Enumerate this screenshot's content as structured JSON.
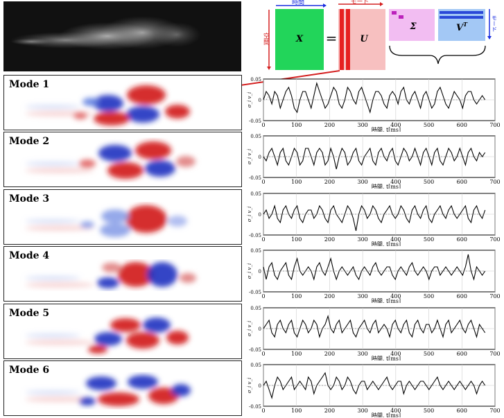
{
  "diagram": {
    "x_label": "X",
    "u_label": "U",
    "sigma_label": "Σ",
    "vt_label": "V",
    "vt_sup": "T",
    "equals": "=",
    "time_axis": "時間",
    "space_axis": "空間",
    "mode_axis": "モード",
    "mode_axis_v": "モード",
    "colors": {
      "x": "#22d55a",
      "u": "#f7c0c0",
      "u_cols": "#e62020",
      "sigma": "#f2bdf2",
      "sigma_blocks": "#bb22bb",
      "vt": "#a3c8f5",
      "vt_bars": "#2a48d8",
      "arrow_red": "#d42020",
      "arrow_blue": "#1a2ee0"
    }
  },
  "modes": [
    {
      "label": "Mode 1"
    },
    {
      "label": "Mode 2"
    },
    {
      "label": "Mode 3"
    },
    {
      "label": "Mode 4"
    },
    {
      "label": "Mode 5"
    },
    {
      "label": "Mode 6"
    }
  ],
  "chart_data": {
    "type": "line",
    "xlabel": "時間, t[ms]",
    "ylabel": "σ_i v_i",
    "xlim": [
      0,
      700
    ],
    "ylim": [
      -0.05,
      0.05
    ],
    "xticks": [
      "0",
      "100",
      "200",
      "300",
      "400",
      "500",
      "600",
      "700"
    ],
    "yticks": [
      "0.05",
      "0",
      "-0.05"
    ],
    "grid": true,
    "panels": [
      {
        "name": "Mode 1",
        "y": [
          0.0,
          0.02,
          0.01,
          -0.01,
          0.02,
          0.01,
          -0.02,
          0.0,
          0.02,
          0.03,
          0.01,
          -0.02,
          -0.03,
          0.0,
          0.02,
          0.02,
          0.0,
          -0.02,
          0.01,
          0.04,
          0.02,
          0.0,
          -0.02,
          -0.01,
          0.01,
          0.03,
          0.02,
          -0.01,
          -0.02,
          0.0,
          0.03,
          0.02,
          0.0,
          -0.01,
          0.02,
          0.03,
          0.01,
          -0.01,
          -0.03,
          0.0,
          0.02,
          0.02,
          0.01,
          -0.01,
          -0.02,
          0.01,
          0.02,
          0.01,
          -0.01,
          0.02,
          0.03,
          0.0,
          -0.01,
          0.01,
          0.02,
          0.0,
          -0.02,
          0.01,
          0.02,
          0.0,
          -0.02,
          -0.01,
          0.02,
          0.03,
          0.01,
          -0.01,
          -0.02,
          0.0,
          0.02,
          0.01,
          0.0,
          -0.02,
          0.01,
          0.02,
          0.02,
          0.0,
          -0.01,
          0.0,
          0.01,
          0.0
        ],
        "y2": [
          0.0,
          0.0,
          0.01,
          0.0,
          0.0,
          0.0,
          0.0,
          0.0,
          0.0,
          0.0,
          0.0,
          0.0,
          0.0,
          0.0,
          0.0,
          0.0,
          0.0,
          0.0,
          0.0,
          0.0,
          0.0,
          0.0,
          0.0,
          0.0,
          0.0,
          0.0,
          0.0,
          0.0,
          0.0,
          0.0,
          0.0,
          0.0,
          0.0,
          0.0,
          0.0,
          0.0,
          0.0,
          0.0,
          0.0,
          0.0,
          0.0,
          0.0,
          0.0,
          0.0,
          0.0,
          0.0,
          0.0,
          0.0,
          0.0,
          0.0,
          0.0,
          0.0,
          0.0,
          0.0,
          0.0,
          0.0,
          0.0,
          0.0,
          0.0,
          0.0,
          0.0,
          0.0,
          0.0,
          0.0,
          0.0,
          0.0,
          0.0,
          0.0,
          0.0,
          0.0,
          0.0,
          0.0,
          0.0,
          0.0,
          0.0,
          0.0,
          0.0,
          0.0,
          0.0,
          0.0
        ]
      },
      {
        "name": "Mode 2",
        "y": [
          0.0,
          -0.01,
          0.01,
          0.02,
          0.0,
          -0.02,
          0.01,
          0.02,
          -0.01,
          -0.02,
          0.0,
          0.02,
          0.01,
          -0.02,
          -0.01,
          0.02,
          0.02,
          0.0,
          -0.02,
          0.01,
          0.02,
          0.01,
          -0.02,
          -0.01,
          0.02,
          0.0,
          -0.03,
          0.0,
          0.02,
          0.01,
          -0.02,
          -0.01,
          0.01,
          0.02,
          -0.01,
          -0.02,
          0.0,
          0.01,
          0.02,
          -0.01,
          -0.02,
          0.01,
          0.02,
          0.0,
          -0.01,
          0.01,
          0.02,
          -0.01,
          -0.02,
          0.0,
          0.02,
          0.01,
          -0.01,
          0.0,
          0.02,
          0.0,
          -0.02,
          0.01,
          0.02,
          0.0,
          -0.02,
          0.01,
          0.02,
          -0.01,
          -0.02,
          0.0,
          0.02,
          0.01,
          -0.01,
          0.0,
          0.02,
          0.0,
          -0.02,
          0.01,
          0.02,
          0.0,
          -0.01,
          0.01,
          0.0,
          0.01
        ],
        "y2": [
          0.0,
          0.0,
          0.0,
          0.0,
          0.0,
          0.0,
          0.0,
          0.0,
          0.0,
          0.0,
          0.0,
          0.0,
          0.0,
          0.0,
          0.0,
          0.0,
          0.0,
          0.0,
          0.0,
          0.0,
          0.0,
          0.0,
          0.0,
          0.0,
          0.0,
          0.0,
          0.0,
          0.0,
          0.0,
          0.0,
          0.0,
          0.0,
          0.0,
          0.0,
          0.0,
          0.0,
          0.0,
          0.0,
          0.0,
          0.0,
          0.0,
          0.0,
          0.0,
          0.0,
          0.0,
          0.0,
          0.0,
          0.0,
          0.0,
          0.0,
          0.0,
          0.0,
          0.0,
          0.0,
          0.0,
          0.0,
          0.0,
          0.0,
          0.0,
          0.0,
          0.0,
          0.0,
          0.0,
          0.0,
          0.0,
          0.0,
          0.0,
          0.0,
          0.0,
          0.0,
          0.0,
          0.0,
          0.0,
          0.0,
          0.0,
          0.0,
          0.0,
          0.0,
          0.0,
          0.0
        ]
      },
      {
        "name": "Mode 3",
        "y": [
          0.0,
          0.01,
          -0.01,
          0.0,
          0.02,
          -0.01,
          -0.02,
          0.01,
          0.02,
          0.0,
          -0.01,
          0.01,
          0.02,
          -0.01,
          -0.02,
          0.0,
          0.01,
          0.01,
          -0.01,
          0.0,
          0.02,
          0.01,
          -0.01,
          -0.02,
          0.01,
          0.02,
          0.0,
          -0.01,
          -0.02,
          0.0,
          0.02,
          0.01,
          -0.01,
          -0.04,
          0.0,
          0.02,
          0.01,
          -0.01,
          0.0,
          0.02,
          0.01,
          -0.01,
          -0.02,
          0.0,
          0.01,
          0.02,
          0.0,
          -0.01,
          0.0,
          0.02,
          0.01,
          -0.01,
          -0.02,
          0.01,
          0.02,
          0.0,
          -0.01,
          0.01,
          0.02,
          -0.01,
          -0.02,
          0.0,
          0.01,
          0.02,
          0.0,
          -0.01,
          0.01,
          0.02,
          0.0,
          -0.01,
          0.0,
          0.01,
          0.02,
          -0.01,
          -0.02,
          0.01,
          0.02,
          0.0,
          -0.01,
          0.01
        ],
        "y2": [
          0.0,
          0.0,
          0.0,
          0.0,
          0.0,
          0.0,
          0.0,
          0.0,
          0.0,
          0.0,
          0.0,
          0.0,
          0.0,
          0.0,
          0.0,
          0.0,
          0.0,
          0.0,
          0.0,
          0.0,
          0.0,
          0.0,
          0.0,
          0.0,
          0.0,
          0.0,
          0.0,
          0.0,
          0.0,
          0.0,
          0.0,
          0.0,
          0.0,
          0.0,
          0.0,
          0.0,
          0.0,
          0.0,
          0.0,
          0.0,
          0.0,
          0.0,
          0.0,
          0.0,
          0.0,
          0.0,
          0.0,
          0.0,
          0.0,
          0.0,
          0.0,
          0.0,
          0.0,
          0.0,
          0.0,
          0.0,
          0.0,
          0.0,
          0.0,
          0.0,
          0.0,
          0.0,
          0.0,
          0.0,
          0.0,
          0.0,
          0.0,
          0.0,
          0.0,
          0.0,
          0.0,
          0.0,
          0.0,
          0.0,
          0.0,
          0.0,
          0.0,
          0.0,
          0.0,
          0.0
        ]
      },
      {
        "name": "Mode 4",
        "y": [
          0.01,
          -0.02,
          0.01,
          0.02,
          -0.01,
          -0.02,
          0.0,
          0.01,
          0.02,
          -0.01,
          -0.02,
          0.01,
          0.03,
          0.0,
          -0.01,
          0.0,
          0.01,
          0.0,
          -0.02,
          0.01,
          0.02,
          0.0,
          -0.01,
          0.01,
          0.03,
          0.0,
          -0.02,
          0.0,
          0.01,
          0.0,
          -0.01,
          0.0,
          0.01,
          -0.01,
          -0.02,
          0.0,
          0.01,
          0.0,
          -0.01,
          0.01,
          0.02,
          0.0,
          -0.01,
          0.0,
          0.01,
          0.01,
          -0.01,
          -0.02,
          0.0,
          0.01,
          0.0,
          -0.01,
          0.01,
          0.02,
          0.0,
          -0.01,
          0.0,
          0.01,
          0.0,
          -0.02,
          0.0,
          0.01,
          0.01,
          -0.01,
          0.0,
          0.01,
          0.0,
          -0.01,
          0.0,
          0.01,
          0.0,
          -0.01,
          0.01,
          0.04,
          0.0,
          -0.02,
          0.01,
          0.0,
          -0.01,
          0.0
        ],
        "y2": [
          0.0,
          0.0,
          0.0,
          0.0,
          0.0,
          0.0,
          0.0,
          0.0,
          0.0,
          0.0,
          0.0,
          0.0,
          0.0,
          0.0,
          0.0,
          0.0,
          0.0,
          0.0,
          0.0,
          0.0,
          0.0,
          0.0,
          0.0,
          0.0,
          0.0,
          0.0,
          0.0,
          0.0,
          0.0,
          0.0,
          0.0,
          0.0,
          0.0,
          0.0,
          0.0,
          0.0,
          0.0,
          0.0,
          0.0,
          0.0,
          0.0,
          0.0,
          0.0,
          0.0,
          0.0,
          0.0,
          0.0,
          0.0,
          0.0,
          0.0,
          0.0,
          0.0,
          0.0,
          0.0,
          0.0,
          0.0,
          0.0,
          0.0,
          0.0,
          0.0,
          0.0,
          0.0,
          0.0,
          0.0,
          0.0,
          0.0,
          0.0,
          0.0,
          0.0,
          0.0,
          0.0,
          0.0,
          0.0,
          0.0,
          0.0,
          0.0,
          0.0,
          0.0,
          0.0,
          0.0
        ]
      },
      {
        "name": "Mode 5",
        "y": [
          0.0,
          0.01,
          0.02,
          -0.01,
          -0.02,
          0.01,
          0.02,
          0.0,
          -0.01,
          0.01,
          0.02,
          -0.01,
          -0.02,
          0.0,
          0.02,
          0.01,
          -0.01,
          0.0,
          0.02,
          0.01,
          -0.02,
          0.0,
          0.01,
          0.03,
          0.0,
          -0.01,
          0.01,
          0.02,
          -0.01,
          0.0,
          0.01,
          0.02,
          -0.01,
          -0.02,
          0.0,
          0.01,
          0.02,
          0.0,
          -0.01,
          0.01,
          0.02,
          -0.01,
          0.0,
          0.01,
          0.0,
          -0.02,
          0.01,
          0.02,
          0.0,
          -0.01,
          0.01,
          0.02,
          -0.01,
          -0.02,
          0.01,
          0.02,
          0.0,
          -0.01,
          0.01,
          0.01,
          -0.01,
          0.0,
          0.02,
          0.0,
          -0.02,
          0.01,
          0.02,
          -0.01,
          0.0,
          0.01,
          0.02,
          0.0,
          -0.01,
          0.01,
          0.02,
          0.0,
          -0.02,
          0.01,
          0.0,
          -0.01
        ],
        "y2": [
          0.0,
          0.0,
          0.0,
          0.0,
          0.0,
          0.0,
          0.0,
          0.0,
          0.0,
          0.0,
          0.0,
          0.0,
          0.0,
          0.0,
          0.0,
          0.0,
          0.0,
          0.0,
          0.0,
          0.0,
          0.0,
          0.0,
          0.0,
          0.0,
          0.0,
          0.0,
          0.0,
          0.0,
          0.0,
          0.0,
          0.0,
          0.0,
          0.0,
          0.0,
          0.0,
          0.0,
          0.0,
          0.0,
          0.0,
          0.0,
          0.0,
          0.0,
          0.0,
          0.0,
          0.0,
          0.0,
          0.0,
          0.0,
          0.0,
          0.0,
          0.0,
          0.0,
          0.0,
          0.0,
          0.0,
          0.0,
          0.0,
          0.0,
          0.0,
          0.0,
          0.0,
          0.0,
          0.0,
          0.0,
          0.0,
          0.0,
          0.0,
          0.0,
          0.0,
          0.0,
          0.0,
          0.0,
          0.0,
          0.0,
          0.0,
          0.0,
          0.0,
          0.0,
          0.0,
          0.0
        ]
      },
      {
        "name": "Mode 6",
        "y": [
          0.0,
          0.01,
          -0.01,
          -0.03,
          0.0,
          0.02,
          0.01,
          -0.01,
          0.0,
          0.01,
          0.02,
          -0.01,
          0.0,
          0.01,
          0.0,
          -0.01,
          0.02,
          0.01,
          -0.02,
          0.0,
          0.01,
          0.02,
          0.03,
          0.0,
          -0.01,
          0.0,
          0.02,
          0.01,
          -0.01,
          0.0,
          0.02,
          0.01,
          -0.01,
          -0.02,
          0.0,
          0.01,
          0.01,
          -0.01,
          0.0,
          0.01,
          0.0,
          -0.01,
          0.0,
          0.01,
          0.02,
          0.0,
          -0.01,
          0.0,
          0.01,
          0.01,
          -0.02,
          0.0,
          0.01,
          0.0,
          -0.01,
          0.0,
          0.01,
          0.01,
          0.0,
          -0.01,
          0.0,
          0.01,
          0.02,
          0.0,
          -0.01,
          0.0,
          0.01,
          0.0,
          -0.01,
          0.0,
          0.01,
          0.0,
          -0.01,
          0.0,
          0.01,
          0.0,
          -0.02,
          0.0,
          0.01,
          0.0
        ],
        "y2": [
          0.0,
          0.0,
          0.0,
          0.0,
          0.0,
          0.0,
          0.0,
          0.0,
          0.0,
          0.0,
          0.0,
          0.0,
          0.0,
          0.0,
          0.0,
          0.0,
          0.0,
          0.0,
          0.0,
          0.0,
          0.0,
          0.0,
          0.0,
          0.0,
          0.0,
          0.0,
          0.0,
          0.0,
          0.0,
          0.0,
          0.0,
          0.0,
          0.0,
          0.0,
          0.0,
          0.0,
          0.0,
          0.0,
          0.0,
          0.0,
          0.0,
          0.0,
          0.0,
          0.0,
          0.0,
          0.0,
          0.0,
          0.0,
          0.0,
          0.0,
          0.0,
          0.0,
          0.0,
          0.0,
          0.0,
          0.0,
          0.0,
          0.0,
          0.0,
          0.0,
          0.0,
          0.0,
          0.0,
          0.0,
          0.0,
          0.0,
          0.0,
          0.0,
          0.0,
          0.0,
          0.0,
          0.0,
          0.0,
          0.0,
          0.0,
          0.0,
          0.0,
          0.0,
          0.0,
          0.0
        ]
      }
    ]
  }
}
